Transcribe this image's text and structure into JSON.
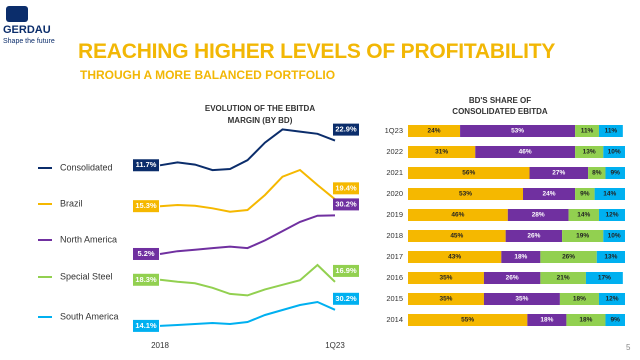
{
  "header": {
    "logo": "GERDAU",
    "tagline": "Shape the future",
    "title": "REACHING HIGHER LEVELS OF PROFITABILITY",
    "subtitle": "THROUGH A MORE BALANCED PORTFOLIO",
    "page_number": "5"
  },
  "chart_data": [
    {
      "type": "line",
      "title": "EVOLUTION OF THE EBITDA MARGIN (BY BD)",
      "categories": [
        "2018",
        null,
        null,
        null,
        null,
        null,
        null,
        null,
        null,
        null,
        "1Q23"
      ],
      "series": [
        {
          "name": "Consolidated",
          "color": "#0b2d6b",
          "ylim": [
            5,
            30
          ],
          "values": [
            11.7,
            13,
            12,
            9.5,
            10,
            14,
            22,
            28,
            27,
            26,
            22.9
          ],
          "value_labels": [
            "11.7%",
            null,
            null,
            null,
            null,
            null,
            null,
            null,
            null,
            null,
            "22.9%"
          ]
        },
        {
          "name": "Brazil",
          "color": "#f5b800",
          "ylim": [
            10,
            40
          ],
          "values": [
            15.3,
            16,
            15.5,
            14,
            12,
            13,
            22,
            33,
            37,
            28,
            19.4
          ],
          "value_labels": [
            "15.3%",
            null,
            null,
            null,
            null,
            null,
            null,
            null,
            null,
            null,
            "19.4%"
          ]
        },
        {
          "name": "North America",
          "color": "#7030a0",
          "ylim": [
            0,
            35
          ],
          "values": [
            5.2,
            7,
            8,
            9,
            10,
            9,
            14,
            20,
            26,
            30,
            30.2
          ],
          "value_labels": [
            "5.2%",
            null,
            null,
            null,
            null,
            null,
            null,
            null,
            null,
            null,
            "30.2%"
          ]
        },
        {
          "name": "Special Steel",
          "color": "#92d050",
          "ylim": [
            5,
            30
          ],
          "values": [
            18.3,
            17,
            16,
            13,
            9,
            8,
            12,
            15,
            18,
            28,
            16.9
          ],
          "value_labels": [
            "18.3%",
            null,
            null,
            null,
            null,
            null,
            null,
            null,
            null,
            null,
            "16.9%"
          ]
        },
        {
          "name": "South America",
          "color": "#00b0f0",
          "ylim": [
            5,
            40
          ],
          "values": [
            14.1,
            15,
            16,
            17,
            16,
            18,
            25,
            30,
            35,
            38,
            30.2
          ],
          "value_labels": [
            "14.1%",
            null,
            null,
            null,
            null,
            null,
            null,
            null,
            null,
            null,
            "30.2%"
          ]
        }
      ]
    },
    {
      "type": "bar",
      "orientation": "horizontal",
      "stacked": true,
      "title": "BD'S SHARE OF CONSOLIDATED EBITDA",
      "categories": [
        "1Q23",
        "2022",
        "2021",
        "2020",
        "2019",
        "2018",
        "2017",
        "2016",
        "2015",
        "2014"
      ],
      "xlim": [
        0,
        100
      ],
      "series": [
        {
          "color": "#f5b800",
          "values": [
            24,
            31,
            56,
            53,
            46,
            45,
            43,
            35,
            35,
            55
          ],
          "value_labels": [
            "24%",
            "31%",
            "56%",
            "53%",
            "46%",
            "45%",
            "43%",
            "35%",
            "35%",
            "55%"
          ]
        },
        {
          "color": "#7030a0",
          "values": [
            53,
            46,
            27,
            24,
            28,
            26,
            18,
            26,
            35,
            18
          ],
          "value_labels": [
            "53%",
            "46%",
            "27%",
            "24%",
            "28%",
            "26%",
            "18%",
            "26%",
            "35%",
            "18%"
          ]
        },
        {
          "color": "#92d050",
          "values": [
            11,
            13,
            8,
            9,
            14,
            19,
            26,
            21,
            18,
            18
          ],
          "value_labels": [
            "11%",
            "13%",
            "8%",
            "9%",
            "14%",
            "19%",
            "26%",
            "21%",
            "18%",
            "18%"
          ]
        },
        {
          "color": "#00b0f0",
          "values": [
            11,
            10,
            9,
            14,
            12,
            10,
            13,
            17,
            12,
            9
          ],
          "value_labels": [
            "11%",
            "10%",
            "9%",
            "14%",
            "12%",
            "10%",
            "13%",
            "17%",
            "12%",
            "9%"
          ]
        }
      ]
    }
  ]
}
